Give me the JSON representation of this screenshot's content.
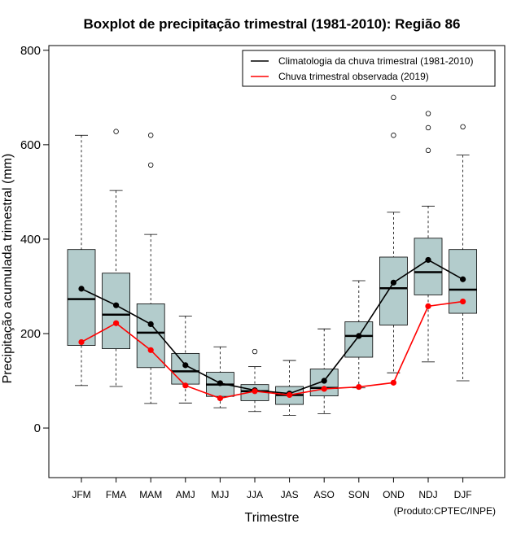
{
  "chart_data": {
    "type": "boxplot",
    "title": "Boxplot de precipitação trimestral (1981-2010): Região 86",
    "xlabel": "Trimestre",
    "ylabel": "Precipitação acumulada trimestral (mm)",
    "credit": "(Produto:CPTEC/INPE)",
    "ylim": [
      -105,
      810
    ],
    "yticks": [
      0,
      200,
      400,
      600,
      800
    ],
    "legend_position": "top-right",
    "categories": [
      "JFM",
      "FMA",
      "MAM",
      "AMJ",
      "MJJ",
      "JJA",
      "JAS",
      "ASO",
      "SON",
      "OND",
      "NDJ",
      "DJF"
    ],
    "boxes": [
      {
        "cat": "JFM",
        "min": 90,
        "q1": 175,
        "median": 273,
        "q3": 378,
        "max": 620,
        "outliers": []
      },
      {
        "cat": "FMA",
        "min": 88,
        "q1": 168,
        "median": 240,
        "q3": 328,
        "max": 503,
        "outliers": [
          628
        ]
      },
      {
        "cat": "MAM",
        "min": 52,
        "q1": 128,
        "median": 202,
        "q3": 263,
        "max": 410,
        "outliers": [
          557,
          620
        ]
      },
      {
        "cat": "AMJ",
        "min": 53,
        "q1": 93,
        "median": 120,
        "q3": 158,
        "max": 237,
        "outliers": []
      },
      {
        "cat": "MJJ",
        "min": 43,
        "q1": 67,
        "median": 92,
        "q3": 118,
        "max": 172,
        "outliers": []
      },
      {
        "cat": "JJA",
        "min": 35,
        "q1": 58,
        "median": 78,
        "q3": 92,
        "max": 130,
        "outliers": [
          162
        ]
      },
      {
        "cat": "JAS",
        "min": 27,
        "q1": 50,
        "median": 70,
        "q3": 88,
        "max": 143,
        "outliers": []
      },
      {
        "cat": "ASO",
        "min": 30,
        "q1": 68,
        "median": 85,
        "q3": 125,
        "max": 210,
        "outliers": []
      },
      {
        "cat": "SON",
        "min": 85,
        "q1": 150,
        "median": 195,
        "q3": 225,
        "max": 312,
        "outliers": []
      },
      {
        "cat": "OND",
        "min": 117,
        "q1": 218,
        "median": 296,
        "q3": 362,
        "max": 457,
        "outliers": [
          620,
          700
        ]
      },
      {
        "cat": "NDJ",
        "min": 140,
        "q1": 282,
        "median": 330,
        "q3": 402,
        "max": 470,
        "outliers": [
          588,
          636,
          666
        ]
      },
      {
        "cat": "DJF",
        "min": 100,
        "q1": 243,
        "median": 293,
        "q3": 378,
        "max": 578,
        "outliers": [
          638
        ]
      }
    ],
    "series": [
      {
        "name": "Climatologia da chuva trimestral (1981-2010)",
        "color": "#000000",
        "values": [
          295,
          260,
          220,
          133,
          95,
          80,
          73,
          100,
          195,
          308,
          356,
          315
        ]
      },
      {
        "name": "Chuva trimestral observada (2019)",
        "color": "#ff0000",
        "values": [
          182,
          222,
          165,
          90,
          63,
          78,
          70,
          83,
          87,
          96,
          258,
          268
        ]
      }
    ],
    "box_color": "#b3cccc"
  }
}
